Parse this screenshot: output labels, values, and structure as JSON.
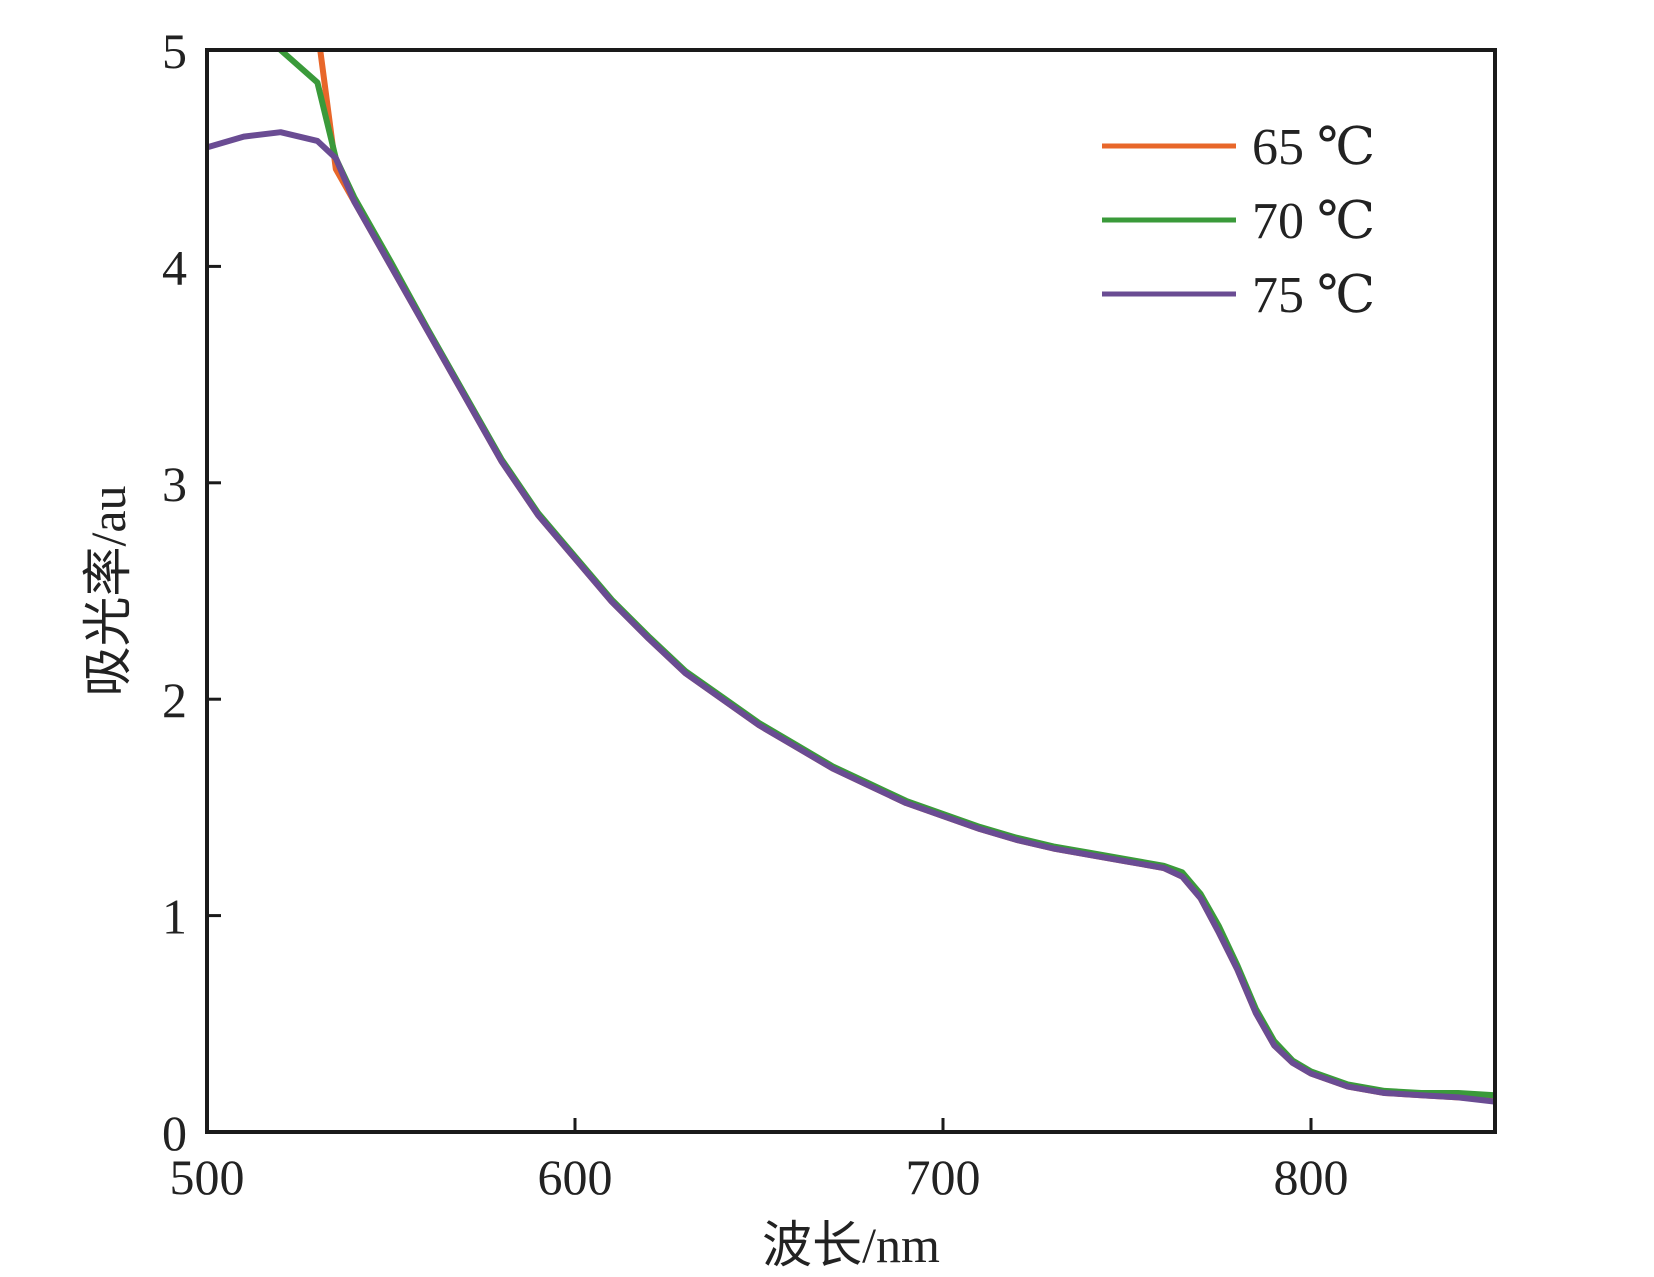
{
  "chart_data": {
    "type": "line",
    "xlabel": "波长/nm",
    "ylabel": "吸光率/au",
    "xlim": [
      500,
      850
    ],
    "ylim": [
      0,
      5
    ],
    "xticks": [
      "500",
      "600",
      "700",
      "800"
    ],
    "yticks": [
      "0",
      "1",
      "2",
      "3",
      "4",
      "5"
    ],
    "grid": false,
    "legend_position": "top-right",
    "x": [
      500,
      510,
      520,
      530,
      535,
      540,
      550,
      560,
      570,
      580,
      590,
      600,
      610,
      620,
      630,
      640,
      650,
      660,
      670,
      680,
      690,
      700,
      710,
      720,
      730,
      740,
      750,
      760,
      765,
      770,
      775,
      780,
      785,
      790,
      795,
      800,
      810,
      820,
      830,
      840,
      850
    ],
    "series": [
      {
        "name": "65 ℃",
        "color": "#e8672a",
        "values": [
          5.2,
          5.2,
          5.2,
          5.1,
          4.45,
          4.3,
          4.0,
          3.7,
          3.4,
          3.1,
          2.85,
          2.65,
          2.45,
          2.28,
          2.12,
          2.0,
          1.88,
          1.78,
          1.68,
          1.6,
          1.52,
          1.46,
          1.4,
          1.35,
          1.31,
          1.28,
          1.25,
          1.22,
          1.18,
          1.08,
          0.92,
          0.75,
          0.55,
          0.4,
          0.32,
          0.27,
          0.21,
          0.18,
          0.17,
          0.16,
          0.15
        ]
      },
      {
        "name": "70 ℃",
        "color": "#3a9a3a",
        "values": [
          5.2,
          5.2,
          5.0,
          4.85,
          4.5,
          4.32,
          4.02,
          3.71,
          3.41,
          3.11,
          2.86,
          2.66,
          2.46,
          2.29,
          2.13,
          2.01,
          1.89,
          1.79,
          1.69,
          1.61,
          1.53,
          1.47,
          1.41,
          1.36,
          1.32,
          1.29,
          1.26,
          1.23,
          1.2,
          1.1,
          0.95,
          0.77,
          0.57,
          0.42,
          0.33,
          0.28,
          0.22,
          0.19,
          0.18,
          0.18,
          0.17
        ]
      },
      {
        "name": "75 ℃",
        "color": "#6a4c93",
        "values": [
          4.55,
          4.6,
          4.62,
          4.58,
          4.5,
          4.3,
          4.0,
          3.7,
          3.4,
          3.1,
          2.85,
          2.65,
          2.45,
          2.28,
          2.12,
          2.0,
          1.88,
          1.78,
          1.68,
          1.6,
          1.52,
          1.46,
          1.4,
          1.35,
          1.31,
          1.28,
          1.25,
          1.22,
          1.18,
          1.08,
          0.92,
          0.75,
          0.55,
          0.4,
          0.32,
          0.27,
          0.21,
          0.18,
          0.17,
          0.16,
          0.14
        ]
      }
    ]
  }
}
